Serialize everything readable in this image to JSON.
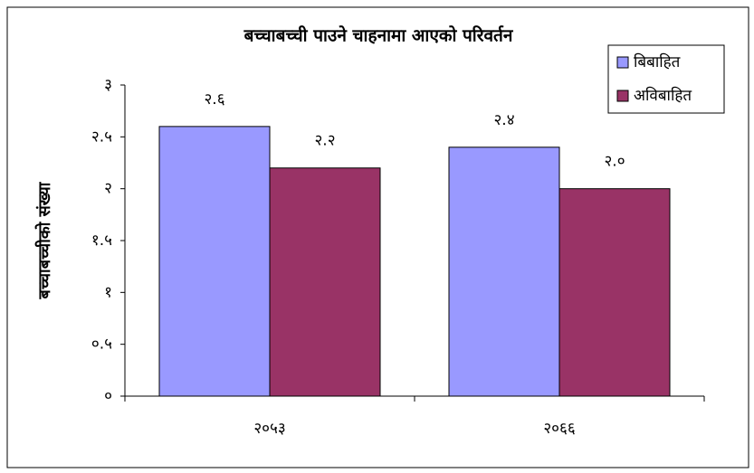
{
  "chart_data": {
    "type": "bar",
    "title": "बच्चाबच्ची पाउने चाहनामा आएको परिवर्तन",
    "y_label": "बच्चाबच्चीको संख्या",
    "categories": [
      "२०५३",
      "२०६६"
    ],
    "series": [
      {
        "name": "बिबाहित",
        "color": "#9999ff",
        "values": [
          2.6,
          2.4
        ],
        "value_labels": [
          "२.६",
          "२.४"
        ]
      },
      {
        "name": "अविबाहित",
        "color": "#993366",
        "values": [
          2.2,
          2.0
        ],
        "value_labels": [
          "२.२",
          "२.०"
        ]
      }
    ],
    "ylim": [
      0,
      3
    ],
    "yticks": [
      {
        "value": 0,
        "label": "०"
      },
      {
        "value": 0.5,
        "label": "०.५"
      },
      {
        "value": 1,
        "label": "१"
      },
      {
        "value": 1.5,
        "label": "१.५"
      },
      {
        "value": 2,
        "label": "२"
      },
      {
        "value": 2.5,
        "label": "२.५"
      },
      {
        "value": 3,
        "label": "३"
      }
    ],
    "legend": "right"
  }
}
